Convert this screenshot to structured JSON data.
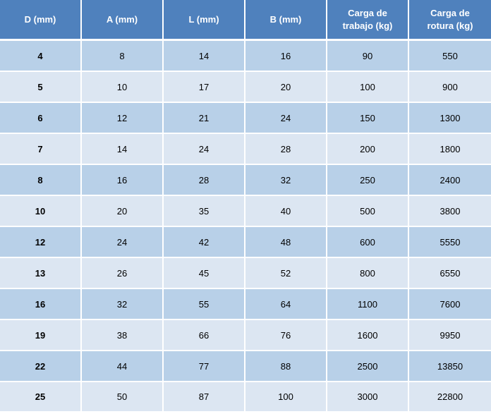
{
  "headers": [
    {
      "line1": "D (mm)",
      "line2": ""
    },
    {
      "line1": "A (mm)",
      "line2": ""
    },
    {
      "line1": "L (mm)",
      "line2": ""
    },
    {
      "line1": "B (mm)",
      "line2": ""
    },
    {
      "line1": "Carga de",
      "line2": "trabajo (kg)"
    },
    {
      "line1": "Carga de",
      "line2": "rotura (kg)"
    }
  ],
  "rows": [
    [
      "4",
      "8",
      "14",
      "16",
      "90",
      "550"
    ],
    [
      "5",
      "10",
      "17",
      "20",
      "100",
      "900"
    ],
    [
      "6",
      "12",
      "21",
      "24",
      "150",
      "1300"
    ],
    [
      "7",
      "14",
      "24",
      "28",
      "200",
      "1800"
    ],
    [
      "8",
      "16",
      "28",
      "32",
      "250",
      "2400"
    ],
    [
      "10",
      "20",
      "35",
      "40",
      "500",
      "3800"
    ],
    [
      "12",
      "24",
      "42",
      "48",
      "600",
      "5550"
    ],
    [
      "13",
      "26",
      "45",
      "52",
      "800",
      "6550"
    ],
    [
      "16",
      "32",
      "55",
      "64",
      "1100",
      "7600"
    ],
    [
      "19",
      "38",
      "66",
      "76",
      "1600",
      "9950"
    ],
    [
      "22",
      "44",
      "77",
      "88",
      "2500",
      "13850"
    ],
    [
      "25",
      "50",
      "87",
      "100",
      "3000",
      "22800"
    ]
  ],
  "colors": {
    "header_bg": "#4f81bd",
    "row_dark": "#b8d0e8",
    "row_light": "#dce6f2"
  }
}
